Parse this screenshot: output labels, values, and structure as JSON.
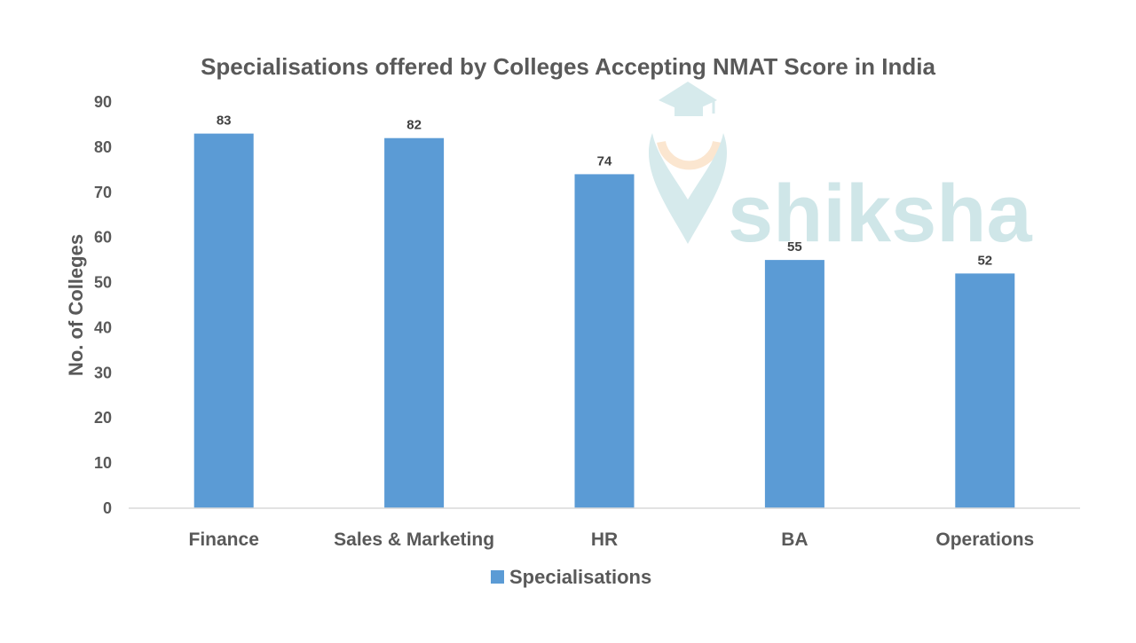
{
  "chart_data": {
    "type": "bar",
    "title": "Specialisations offered by Colleges Accepting NMAT Score in India",
    "xlabel": "",
    "ylabel": "No. of Colleges",
    "categories": [
      "Finance",
      "Sales & Marketing",
      "HR",
      "BA",
      "Operations"
    ],
    "series": [
      {
        "name": "Specialisations",
        "values": [
          83,
          82,
          74,
          55,
          52
        ]
      }
    ],
    "ylim": [
      0,
      90
    ],
    "yticks": [
      0,
      10,
      20,
      30,
      40,
      50,
      60,
      70,
      80,
      90
    ],
    "grid": false,
    "legend": "bottom",
    "colors": {
      "bar": "#5b9bd5",
      "text": "#595959",
      "axis": "#d9d9d9"
    }
  },
  "watermark": {
    "text": "shiksha",
    "icon": "graduation-cap-logo-icon"
  }
}
